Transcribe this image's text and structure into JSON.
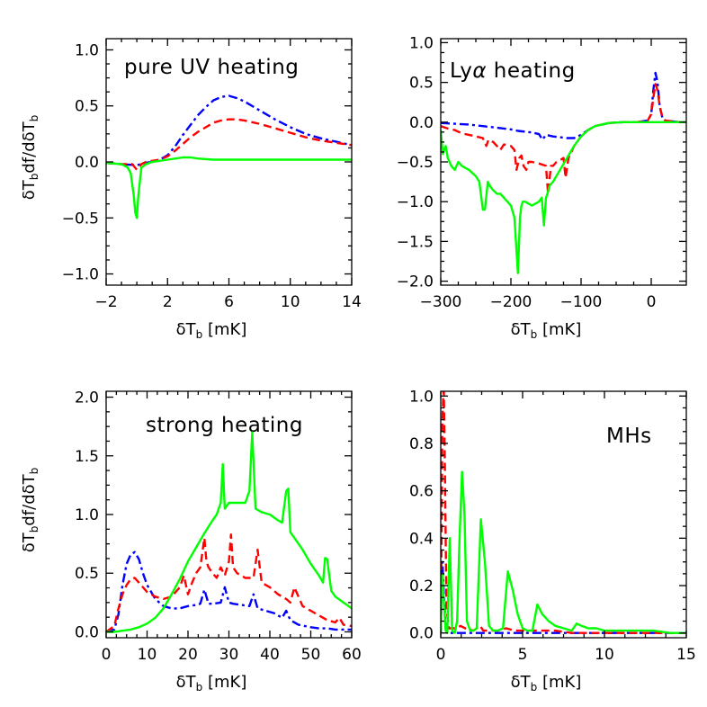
{
  "chart_data": [
    {
      "type": "line",
      "title": "pure UV heating",
      "xlabel_main": "δT",
      "xlabel_sub": "b",
      "xlabel_unit": " [mK]",
      "ylabel_main": "δT",
      "ylabel_sub1": "b",
      "ylabel_mid": "df/dδT",
      "ylabel_sub2": "b",
      "xlim": [
        -2,
        14
      ],
      "ylim": [
        -1.1,
        1.1
      ],
      "xticks": [
        -2,
        2,
        6,
        10,
        14
      ],
      "xtick_labels": [
        "−2",
        "2",
        "6",
        "10",
        "14"
      ],
      "yticks": [
        -1.0,
        -0.5,
        0.0,
        0.5,
        1.0
      ],
      "ytick_labels": [
        "−1.0",
        "−0.5",
        "0.0",
        "0.5",
        "1.0"
      ],
      "series": [
        {
          "color": "#0000ff",
          "dash": "dashdot",
          "x": [
            -2,
            -1,
            0,
            0.5,
            1.0,
            1.5,
            2.0,
            2.5,
            3.0,
            3.5,
            4.0,
            4.5,
            5.0,
            5.5,
            6.0,
            6.5,
            7.0,
            8.0,
            9.0,
            10.0,
            11.0,
            12.0,
            13.0,
            14.0
          ],
          "y": [
            -0.01,
            -0.02,
            -0.03,
            -0.01,
            0.0,
            0.02,
            0.06,
            0.14,
            0.24,
            0.33,
            0.42,
            0.49,
            0.55,
            0.58,
            0.59,
            0.57,
            0.54,
            0.46,
            0.38,
            0.31,
            0.25,
            0.21,
            0.18,
            0.15
          ]
        },
        {
          "color": "#ff0000",
          "dash": "dashed",
          "x": [
            -2,
            -1,
            -0.3,
            0,
            0.3,
            0.6,
            1.0,
            1.5,
            2.0,
            2.5,
            3.0,
            3.5,
            4.0,
            4.5,
            5.0,
            5.5,
            6.0,
            6.5,
            7.0,
            8.0,
            9.0,
            10.0,
            11.0,
            12.0,
            13.0,
            14.0
          ],
          "y": [
            -0.01,
            -0.02,
            -0.02,
            -0.07,
            -0.02,
            0.0,
            0.01,
            0.02,
            0.05,
            0.1,
            0.16,
            0.22,
            0.27,
            0.31,
            0.35,
            0.37,
            0.38,
            0.38,
            0.37,
            0.34,
            0.3,
            0.26,
            0.22,
            0.19,
            0.17,
            0.15
          ]
        },
        {
          "color": "#00ff00",
          "dash": "solid",
          "x": [
            -2,
            -1,
            -0.6,
            -0.4,
            -0.2,
            -0.1,
            0.0,
            0.1,
            0.3,
            0.6,
            1.0,
            1.5,
            2.0,
            2.5,
            3.0,
            3.5,
            4.0,
            5.0,
            6.0,
            8.0,
            10.0,
            12.0,
            14.0
          ],
          "y": [
            -0.01,
            -0.02,
            -0.05,
            -0.1,
            -0.3,
            -0.45,
            -0.5,
            -0.3,
            -0.05,
            -0.02,
            0.0,
            0.01,
            0.02,
            0.03,
            0.04,
            0.04,
            0.03,
            0.02,
            0.02,
            0.02,
            0.02,
            0.02,
            0.02
          ]
        }
      ]
    },
    {
      "type": "line",
      "title_pre": "Ly",
      "title_greek": "α",
      "title_post": " heating",
      "xlabel_main": "δT",
      "xlabel_sub": "b",
      "xlabel_unit": " [mK]",
      "xlim": [
        -300,
        50
      ],
      "ylim": [
        -2.05,
        1.05
      ],
      "xticks": [
        -300,
        -200,
        -100,
        0
      ],
      "xtick_labels": [
        "−300",
        "−200",
        "−100",
        "0"
      ],
      "yticks": [
        -2.0,
        -1.5,
        -1.0,
        -0.5,
        0.0,
        0.5,
        1.0
      ],
      "ytick_labels": [
        "−2.0",
        "−1.5",
        "−1.0",
        "−0.5",
        "0.0",
        "0.5",
        "1.0"
      ],
      "series": [
        {
          "color": "#0000ff",
          "dash": "dashdot",
          "x": [
            -300,
            -280,
            -260,
            -250,
            -240,
            -220,
            -200,
            -190,
            -180,
            -170,
            -160,
            -155,
            -150,
            -145,
            -140,
            -130,
            -120,
            -110,
            -100,
            -90,
            -80,
            -60,
            -40,
            -20,
            -5,
            0,
            3,
            6,
            9,
            12,
            16,
            20,
            30,
            40,
            50
          ],
          "y": [
            -0.01,
            -0.02,
            -0.03,
            -0.04,
            -0.05,
            -0.07,
            -0.09,
            -0.11,
            -0.12,
            -0.13,
            -0.15,
            -0.22,
            -0.16,
            -0.17,
            -0.18,
            -0.19,
            -0.2,
            -0.2,
            -0.16,
            -0.1,
            -0.05,
            -0.01,
            0.0,
            0.0,
            0.02,
            0.1,
            0.4,
            0.62,
            0.5,
            0.2,
            0.05,
            0.02,
            0.01,
            0.0,
            0.0
          ]
        },
        {
          "color": "#ff0000",
          "dash": "dashed",
          "x": [
            -300,
            -290,
            -280,
            -270,
            -260,
            -250,
            -240,
            -235,
            -232,
            -228,
            -225,
            -220,
            -215,
            -210,
            -200,
            -195,
            -192,
            -188,
            -185,
            -182,
            -178,
            -175,
            -170,
            -160,
            -150,
            -147,
            -143,
            -140,
            -135,
            -130,
            -125,
            -122,
            -118,
            -115,
            -110,
            -100,
            -90,
            -80,
            -60,
            -40,
            -20,
            -5,
            0,
            3,
            6,
            9,
            12,
            16,
            20,
            30,
            40,
            50
          ],
          "y": [
            -0.05,
            -0.08,
            -0.1,
            -0.14,
            -0.16,
            -0.18,
            -0.2,
            -0.3,
            -0.22,
            -0.24,
            -0.25,
            -0.3,
            -0.35,
            -0.28,
            -0.3,
            -0.35,
            -0.6,
            -0.45,
            -0.42,
            -0.55,
            -0.6,
            -0.5,
            -0.5,
            -0.52,
            -0.55,
            -0.9,
            -0.55,
            -0.55,
            -0.5,
            -0.48,
            -0.45,
            -0.7,
            -0.45,
            -0.4,
            -0.3,
            -0.18,
            -0.1,
            -0.05,
            -0.01,
            0.0,
            0.0,
            0.02,
            0.1,
            0.3,
            0.48,
            0.4,
            0.2,
            0.06,
            0.02,
            0.01,
            0.0,
            0.0
          ]
        },
        {
          "color": "#00ff00",
          "dash": "solid",
          "x": [
            -300,
            -297,
            -293,
            -290,
            -285,
            -280,
            -275,
            -270,
            -260,
            -250,
            -245,
            -240,
            -237,
            -233,
            -230,
            -226,
            -220,
            -215,
            -210,
            -205,
            -200,
            -195,
            -190,
            -187,
            -185,
            -183,
            -180,
            -170,
            -160,
            -156,
            -153,
            -150,
            -148,
            -145,
            -140,
            -130,
            -120,
            -110,
            -100,
            -90,
            -80,
            -60,
            -40,
            -20,
            0,
            20,
            40,
            50
          ],
          "y": [
            -0.1,
            -0.4,
            -0.3,
            -0.45,
            -0.55,
            -0.6,
            -0.5,
            -0.55,
            -0.6,
            -0.68,
            -0.75,
            -1.1,
            -1.1,
            -0.75,
            -0.8,
            -0.85,
            -0.9,
            -0.9,
            -0.95,
            -1.0,
            -1.05,
            -1.2,
            -1.9,
            -1.2,
            -1.05,
            -1.0,
            -1.0,
            -1.05,
            -1.0,
            -0.95,
            -1.3,
            -0.95,
            -0.9,
            -0.8,
            -0.75,
            -0.6,
            -0.45,
            -0.3,
            -0.18,
            -0.1,
            -0.05,
            -0.01,
            0.0,
            0.0,
            0.0,
            0.0,
            0.0,
            0.0
          ]
        }
      ]
    },
    {
      "type": "line",
      "title": "strong heating",
      "xlabel_main": "δT",
      "xlabel_sub": "b",
      "xlabel_unit": " [mK]",
      "ylabel_main": "δT",
      "ylabel_sub1": "b",
      "ylabel_mid": "df/dδT",
      "ylabel_sub2": "b",
      "xlim": [
        0,
        60
      ],
      "ylim": [
        -0.05,
        2.05
      ],
      "xticks": [
        0,
        10,
        20,
        30,
        40,
        50,
        60
      ],
      "xtick_labels": [
        "0",
        "10",
        "20",
        "30",
        "40",
        "50",
        "60"
      ],
      "yticks": [
        0.0,
        0.5,
        1.0,
        1.5,
        2.0
      ],
      "ytick_labels": [
        "0.0",
        "0.5",
        "1.0",
        "1.5",
        "2.0"
      ],
      "series": [
        {
          "color": "#0000ff",
          "dash": "dashdot",
          "x": [
            0,
            2,
            3,
            4,
            5,
            6,
            7,
            8,
            9,
            10,
            12,
            14,
            16,
            18,
            20,
            22,
            23,
            24,
            25,
            26,
            28,
            29,
            30,
            31,
            33,
            35,
            36,
            37,
            39,
            41,
            43,
            44,
            45,
            47,
            50,
            52,
            54,
            56,
            58,
            60
          ],
          "y": [
            0.0,
            0.02,
            0.15,
            0.4,
            0.58,
            0.66,
            0.68,
            0.62,
            0.5,
            0.4,
            0.28,
            0.22,
            0.2,
            0.2,
            0.22,
            0.23,
            0.24,
            0.36,
            0.24,
            0.24,
            0.25,
            0.38,
            0.25,
            0.24,
            0.23,
            0.22,
            0.32,
            0.2,
            0.18,
            0.16,
            0.12,
            0.18,
            0.1,
            0.06,
            0.04,
            0.03,
            0.03,
            0.02,
            0.02,
            0.02
          ]
        },
        {
          "color": "#ff0000",
          "dash": "dashed",
          "x": [
            0,
            2,
            3,
            4,
            5,
            6,
            7,
            8,
            9,
            10,
            12,
            14,
            16,
            18,
            19,
            20,
            21,
            22,
            23,
            24,
            24.5,
            25,
            26,
            27,
            28,
            29,
            30,
            30.5,
            31,
            32,
            34,
            36,
            37,
            38,
            40,
            42,
            44,
            45,
            46,
            48,
            50,
            52,
            54,
            56,
            57,
            58,
            60
          ],
          "y": [
            0.0,
            0.05,
            0.2,
            0.32,
            0.4,
            0.45,
            0.46,
            0.42,
            0.38,
            0.34,
            0.3,
            0.28,
            0.3,
            0.38,
            0.48,
            0.32,
            0.42,
            0.5,
            0.55,
            0.8,
            0.6,
            0.55,
            0.5,
            0.46,
            0.55,
            0.48,
            0.6,
            0.83,
            0.55,
            0.5,
            0.46,
            0.46,
            0.7,
            0.42,
            0.38,
            0.32,
            0.28,
            0.25,
            0.38,
            0.22,
            0.18,
            0.14,
            0.1,
            0.08,
            0.12,
            0.06,
            0.05
          ]
        },
        {
          "color": "#00ff00",
          "dash": "solid",
          "x": [
            0,
            2,
            4,
            6,
            8,
            10,
            12,
            14,
            16,
            18,
            20,
            22,
            24,
            26,
            27,
            28,
            28.5,
            29,
            30,
            32,
            34,
            35,
            35.7,
            36.5,
            38,
            40,
            42,
            43,
            44,
            44.5,
            45,
            46,
            48,
            50,
            52,
            53,
            53.5,
            54,
            55,
            56,
            58,
            60
          ],
          "y": [
            0.0,
            0.0,
            0.01,
            0.02,
            0.04,
            0.07,
            0.12,
            0.2,
            0.32,
            0.45,
            0.6,
            0.72,
            0.84,
            0.95,
            1.0,
            1.1,
            1.43,
            1.05,
            1.1,
            1.1,
            1.1,
            1.2,
            1.7,
            1.05,
            1.02,
            1.0,
            0.95,
            0.93,
            1.2,
            1.22,
            0.85,
            0.8,
            0.7,
            0.58,
            0.48,
            0.42,
            0.63,
            0.62,
            0.35,
            0.3,
            0.25,
            0.2
          ]
        }
      ]
    },
    {
      "type": "line",
      "title": "MHs",
      "xlabel_main": "δT",
      "xlabel_sub": "b",
      "xlabel_unit": " [mK]",
      "xlim": [
        0,
        15
      ],
      "ylim": [
        -0.02,
        1.02
      ],
      "xticks": [
        0,
        5,
        10,
        15
      ],
      "xtick_labels": [
        "0",
        "5",
        "10",
        "15"
      ],
      "yticks": [
        0.0,
        0.2,
        0.4,
        0.6,
        0.8,
        1.0
      ],
      "ytick_labels": [
        "0.0",
        "0.2",
        "0.4",
        "0.6",
        "0.8",
        "1.0"
      ],
      "series": [
        {
          "color": "#0000ff",
          "dash": "dashdot",
          "x": [
            0,
            0.1,
            0.2,
            0.3,
            0.5,
            1,
            2,
            5,
            10,
            15
          ],
          "y": [
            0.0,
            0.3,
            0.15,
            0.02,
            0.0,
            0.0,
            0.0,
            0.0,
            0.0,
            0.0
          ]
        },
        {
          "color": "#ff0000",
          "dash": "dashed",
          "x": [
            0,
            0.05,
            0.1,
            0.18,
            0.25,
            0.35,
            0.5,
            0.8,
            1.0,
            1.2,
            1.5,
            2.0,
            2.4,
            2.6,
            3.0,
            3.5,
            4.0,
            4.5,
            5.0,
            6.0,
            7.0,
            8.0,
            10.0,
            12.0,
            15.0
          ],
          "y": [
            0.0,
            0.4,
            0.9,
            1.05,
            0.7,
            0.1,
            0.02,
            0.02,
            0.02,
            0.03,
            0.02,
            0.01,
            0.03,
            0.01,
            0.01,
            0.01,
            0.02,
            0.01,
            0.01,
            0.01,
            0.01,
            0.0,
            0.0,
            0.0,
            0.0
          ]
        },
        {
          "color": "#00ff00",
          "dash": "solid",
          "x": [
            0,
            0.1,
            0.2,
            0.3,
            0.4,
            0.55,
            0.7,
            0.85,
            1.0,
            1.15,
            1.3,
            1.45,
            1.6,
            1.8,
            2.0,
            2.2,
            2.45,
            2.7,
            2.95,
            3.2,
            3.5,
            3.8,
            4.1,
            4.4,
            4.7,
            5.0,
            5.3,
            5.6,
            5.9,
            6.2,
            6.6,
            7.0,
            7.5,
            8.0,
            8.3,
            8.6,
            9.0,
            9.5,
            10.0,
            10.5,
            10.8,
            11.0,
            12.0,
            13.0,
            14.0,
            15.0
          ],
          "y": [
            0.0,
            0.25,
            0.12,
            0.01,
            0.0,
            0.4,
            0.01,
            0.0,
            0.05,
            0.4,
            0.68,
            0.5,
            0.05,
            0.01,
            0.01,
            0.02,
            0.48,
            0.3,
            0.03,
            0.01,
            0.01,
            0.02,
            0.26,
            0.18,
            0.08,
            0.02,
            0.01,
            0.01,
            0.12,
            0.08,
            0.05,
            0.03,
            0.02,
            0.01,
            0.04,
            0.03,
            0.02,
            0.02,
            0.01,
            0.01,
            0.01,
            0.01,
            0.01,
            0.01,
            0.0,
            0.0
          ]
        }
      ]
    }
  ]
}
